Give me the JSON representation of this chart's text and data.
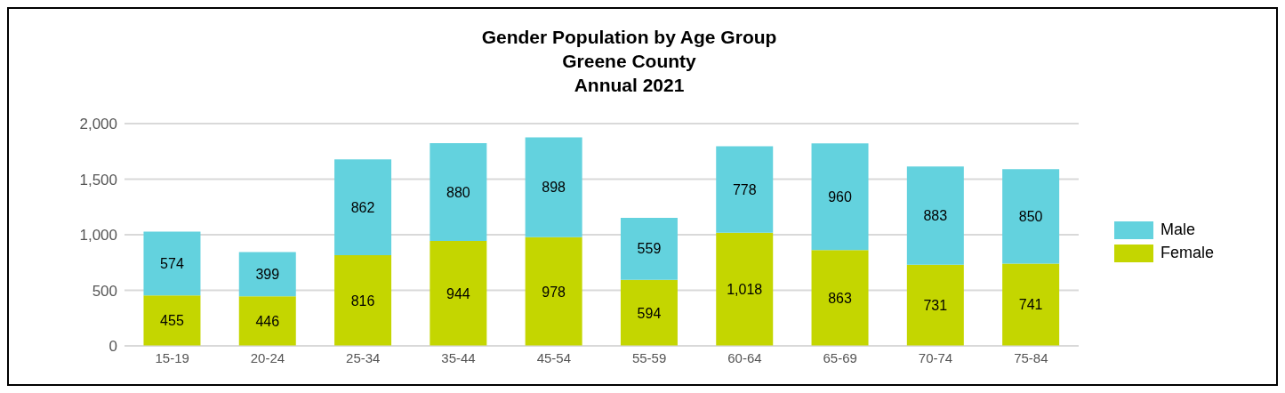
{
  "chart_data": {
    "type": "bar",
    "title": "Gender Population by Age Group\nGreene County\nAnnual 2021",
    "categories": [
      "15-19",
      "20-24",
      "25-34",
      "35-44",
      "45-54",
      "55-59",
      "60-64",
      "65-69",
      "70-74",
      "75-84"
    ],
    "stacked": true,
    "series": [
      {
        "name": "Female",
        "color": "#c4d600",
        "values": [
          455,
          446,
          816,
          944,
          978,
          594,
          1018,
          863,
          731,
          741
        ],
        "value_labels": [
          "455",
          "446",
          "816",
          "944",
          "978",
          "594",
          "1,018",
          "863",
          "731",
          "741"
        ]
      },
      {
        "name": "Male",
        "color": "#63d2de",
        "values": [
          574,
          399,
          862,
          880,
          898,
          559,
          778,
          960,
          883,
          850
        ],
        "value_labels": [
          "574",
          "399",
          "862",
          "880",
          "898",
          "559",
          "778",
          "960",
          "883",
          "850"
        ]
      }
    ],
    "ylim": [
      0,
      2000
    ],
    "yticks": [
      0,
      500,
      {
        "value": 1000,
        "label": "1,000"
      },
      {
        "value": 1500,
        "label": "1,500"
      },
      {
        "value": 2000,
        "label": "2,000"
      }
    ],
    "grid": "y",
    "legend": "right"
  }
}
